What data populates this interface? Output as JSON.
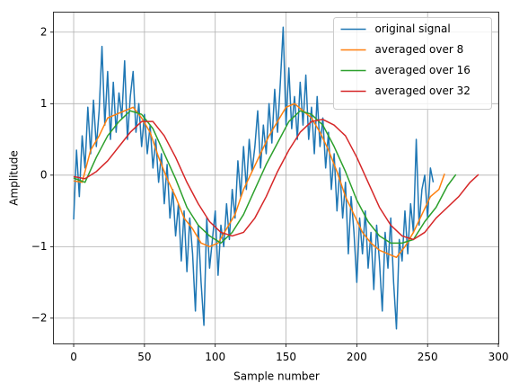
{
  "chart_data": {
    "type": "line",
    "xlabel": "Sample number",
    "ylabel": "Amplitude",
    "xlim": [
      -14.3,
      300.3
    ],
    "ylim": [
      -2.36,
      2.28
    ],
    "xticks": [
      0,
      50,
      100,
      150,
      200,
      250,
      300
    ],
    "yticks": [
      -2,
      -1,
      0,
      1,
      2
    ],
    "grid": true,
    "legend": "upper right",
    "series": [
      {
        "name": "original signal",
        "color": "#1f77b4",
        "x": [
          0,
          2,
          4,
          6,
          8,
          10,
          12,
          14,
          16,
          18,
          20,
          22,
          24,
          26,
          28,
          30,
          32,
          34,
          36,
          38,
          40,
          42,
          44,
          46,
          48,
          50,
          52,
          54,
          56,
          58,
          60,
          62,
          64,
          66,
          68,
          70,
          72,
          74,
          76,
          78,
          80,
          82,
          84,
          86,
          88,
          90,
          92,
          94,
          96,
          98,
          100,
          102,
          104,
          106,
          108,
          110,
          112,
          114,
          116,
          118,
          120,
          122,
          124,
          126,
          128,
          130,
          132,
          134,
          136,
          138,
          140,
          142,
          144,
          146,
          148,
          150,
          152,
          154,
          156,
          158,
          160,
          162,
          164,
          166,
          168,
          170,
          172,
          174,
          176,
          178,
          180,
          182,
          184,
          186,
          188,
          190,
          192,
          194,
          196,
          198,
          200,
          202,
          204,
          206,
          208,
          210,
          212,
          214,
          216,
          218,
          220,
          222,
          224,
          226,
          228,
          230,
          232,
          234,
          236,
          238,
          240,
          242,
          244,
          246,
          248,
          250,
          252,
          254
        ],
        "values": [
          -0.62,
          0.35,
          -0.3,
          0.55,
          0.1,
          0.95,
          0.3,
          1.05,
          0.4,
          0.9,
          1.8,
          0.7,
          1.45,
          0.5,
          1.3,
          0.6,
          1.15,
          0.8,
          1.6,
          0.5,
          1.1,
          1.45,
          0.6,
          1.0,
          0.4,
          0.85,
          0.3,
          0.7,
          0.1,
          0.5,
          -0.1,
          0.3,
          -0.4,
          0.15,
          -0.6,
          -0.2,
          -0.85,
          -0.4,
          -1.2,
          -0.5,
          -1.35,
          -0.6,
          -1.1,
          -1.9,
          -0.7,
          -1.5,
          -2.1,
          -0.6,
          -1.3,
          -0.9,
          -0.5,
          -1.4,
          -0.7,
          -1.0,
          -0.4,
          -0.9,
          -0.2,
          -0.6,
          0.2,
          -0.3,
          0.4,
          -0.2,
          0.5,
          0.05,
          0.4,
          0.9,
          0.1,
          0.7,
          0.3,
          1.0,
          0.45,
          1.2,
          0.6,
          1.3,
          2.07,
          0.7,
          1.5,
          0.65,
          1.1,
          0.5,
          1.3,
          0.7,
          1.4,
          0.5,
          0.95,
          0.3,
          1.1,
          0.4,
          0.8,
          0.1,
          0.6,
          -0.2,
          0.3,
          -0.5,
          0.1,
          -0.6,
          -0.1,
          -1.1,
          -0.3,
          -0.8,
          -1.5,
          -0.6,
          -1.1,
          -0.5,
          -1.3,
          -0.8,
          -1.6,
          -0.7,
          -1.2,
          -1.9,
          -0.8,
          -1.3,
          -0.6,
          -1.5,
          -2.15,
          -0.9,
          -1.2,
          -0.5,
          -1.1,
          -0.4,
          -0.8,
          0.5,
          -0.7,
          -0.2,
          0.0,
          -0.6,
          0.1,
          -0.1
        ]
      },
      {
        "name": "averaged over 8",
        "color": "#ff7f0e",
        "x": [
          0,
          6,
          12,
          18,
          24,
          30,
          36,
          42,
          48,
          54,
          60,
          66,
          72,
          78,
          84,
          90,
          96,
          102,
          108,
          114,
          120,
          126,
          132,
          138,
          144,
          150,
          156,
          162,
          168,
          174,
          180,
          186,
          192,
          198,
          204,
          210,
          216,
          222,
          228,
          234,
          240,
          246,
          252,
          258,
          262
        ],
        "values": [
          -0.08,
          -0.1,
          0.35,
          0.55,
          0.8,
          0.85,
          0.9,
          0.95,
          0.8,
          0.6,
          0.25,
          -0.05,
          -0.3,
          -0.6,
          -0.75,
          -0.95,
          -1.0,
          -0.95,
          -0.75,
          -0.55,
          -0.2,
          0.05,
          0.3,
          0.55,
          0.75,
          0.95,
          1.0,
          0.9,
          0.8,
          0.6,
          0.35,
          0.05,
          -0.3,
          -0.55,
          -0.8,
          -0.95,
          -1.05,
          -1.1,
          -1.15,
          -1.0,
          -0.8,
          -0.55,
          -0.3,
          -0.2,
          0.02
        ]
      },
      {
        "name": "averaged over 16",
        "color": "#2ca02c",
        "x": [
          0,
          8,
          16,
          24,
          32,
          40,
          48,
          56,
          64,
          72,
          80,
          88,
          96,
          104,
          112,
          120,
          128,
          136,
          144,
          152,
          160,
          168,
          176,
          184,
          192,
          200,
          208,
          216,
          224,
          232,
          240,
          248,
          256,
          264,
          270
        ],
        "values": [
          -0.04,
          -0.1,
          0.25,
          0.55,
          0.75,
          0.9,
          0.85,
          0.65,
          0.3,
          -0.05,
          -0.45,
          -0.7,
          -0.85,
          -0.95,
          -0.8,
          -0.55,
          -0.2,
          0.15,
          0.45,
          0.75,
          0.9,
          0.85,
          0.7,
          0.4,
          0.05,
          -0.35,
          -0.65,
          -0.85,
          -0.95,
          -0.95,
          -0.9,
          -0.65,
          -0.45,
          -0.15,
          0.01
        ]
      },
      {
        "name": "averaged over 32",
        "color": "#d62728",
        "x": [
          0,
          8,
          16,
          24,
          32,
          40,
          48,
          56,
          64,
          72,
          80,
          88,
          96,
          104,
          112,
          120,
          128,
          136,
          144,
          152,
          160,
          168,
          176,
          184,
          192,
          200,
          208,
          216,
          224,
          232,
          240,
          248,
          256,
          264,
          272,
          280,
          286
        ],
        "values": [
          -0.02,
          -0.05,
          0.05,
          0.2,
          0.4,
          0.6,
          0.75,
          0.75,
          0.55,
          0.25,
          -0.1,
          -0.4,
          -0.65,
          -0.8,
          -0.85,
          -0.8,
          -0.6,
          -0.3,
          0.05,
          0.35,
          0.6,
          0.75,
          0.78,
          0.7,
          0.55,
          0.25,
          -0.1,
          -0.45,
          -0.7,
          -0.85,
          -0.9,
          -0.8,
          -0.6,
          -0.45,
          -0.3,
          -0.1,
          0.01
        ]
      }
    ]
  }
}
